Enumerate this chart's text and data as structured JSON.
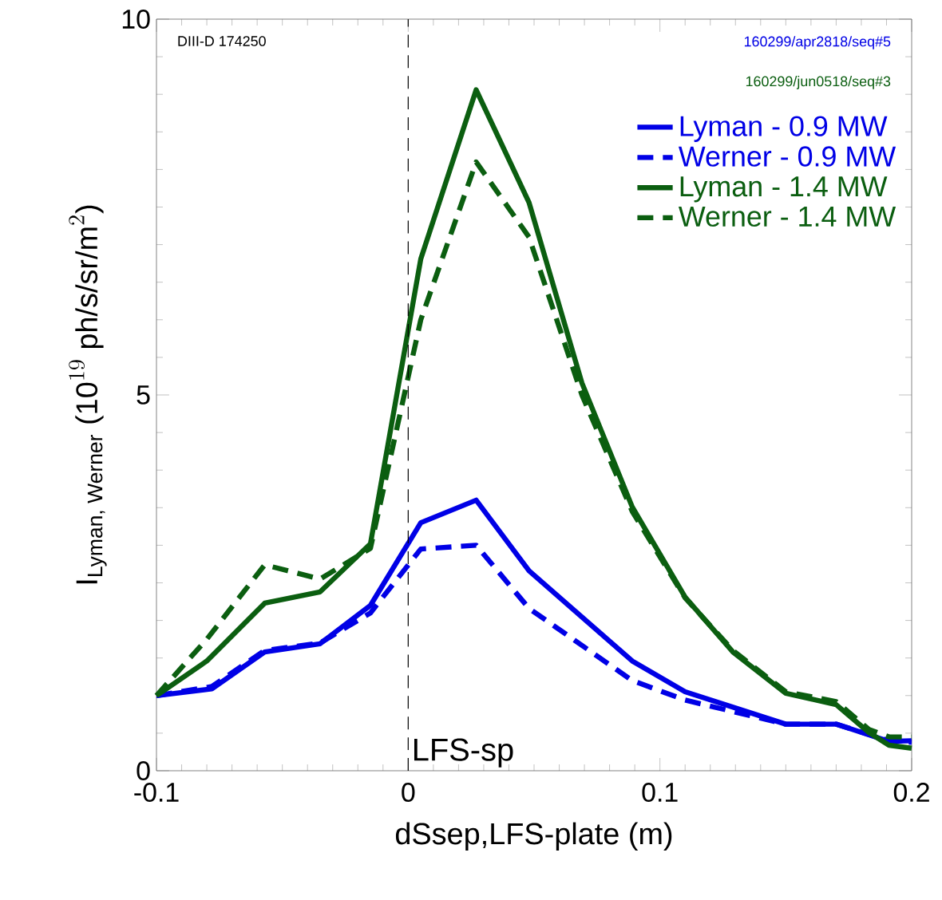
{
  "chart_data": {
    "type": "line",
    "xlabel": "dSsep,LFS-plate (m)",
    "ylabel": "\\text{I}_{\\text{Lyman, Werner}}\\ \\text{(10}^{19}\\text{ ph/s/sr/m}^{2}\\text{)}",
    "xlim": [
      -0.1,
      0.2
    ],
    "ylim": [
      0,
      10
    ],
    "xticks": [
      -0.1,
      0,
      0.1,
      0.2
    ],
    "yticks": [
      0,
      5,
      10
    ],
    "legend": "top right",
    "grid": false,
    "ref_lines": [
      {
        "axis": "x",
        "value": 0,
        "label": "LFS-sp",
        "line_style": "dashed",
        "color": "#000000"
      }
    ],
    "annotations": [
      "DIII-D 174250",
      "160299/apr2818/seq#5",
      "160299/jun0518/seq#3"
    ],
    "series": [
      {
        "name": "Lyman - 0.9 MW",
        "color": "#0000e6",
        "line_style": "solid",
        "x": [
          -0.1,
          -0.078,
          -0.057,
          -0.035,
          -0.015,
          0.005,
          0.027,
          0.048,
          0.089,
          0.11,
          0.15,
          0.17,
          0.191,
          0.2
        ],
        "values": [
          1.0,
          1.09,
          1.58,
          1.69,
          2.2,
          3.3,
          3.6,
          2.66,
          1.46,
          1.05,
          0.62,
          0.62,
          0.39,
          0.4
        ]
      },
      {
        "name": "Werner - 0.9 MW",
        "color": "#0000e6",
        "line_style": "dashed",
        "x": [
          -0.1,
          -0.078,
          -0.057,
          -0.035,
          -0.015,
          0.005,
          0.027,
          0.048,
          0.089,
          0.11,
          0.15,
          0.17,
          0.191,
          0.2
        ],
        "values": [
          1.0,
          1.12,
          1.6,
          1.7,
          2.1,
          2.95,
          3.0,
          2.16,
          1.2,
          0.94,
          0.62,
          0.62,
          0.4,
          0.38
        ]
      },
      {
        "name": "Lyman - 1.4 MW",
        "color": "#0b5e10",
        "line_style": "solid",
        "x": [
          -0.1,
          -0.08,
          -0.057,
          -0.035,
          -0.015,
          0.005,
          0.027,
          0.048,
          0.069,
          0.089,
          0.11,
          0.129,
          0.15,
          0.17,
          0.183,
          0.191,
          0.2
        ],
        "values": [
          1.0,
          1.46,
          2.23,
          2.38,
          3.02,
          6.81,
          9.06,
          7.56,
          5.16,
          3.51,
          2.31,
          1.58,
          1.03,
          0.88,
          0.51,
          0.34,
          0.3
        ]
      },
      {
        "name": "Werner - 1.4 MW",
        "color": "#0b5e10",
        "line_style": "dashed",
        "x": [
          -0.1,
          -0.08,
          -0.057,
          -0.035,
          -0.015,
          0.005,
          0.027,
          0.048,
          0.069,
          0.089,
          0.11,
          0.129,
          0.15,
          0.17,
          0.183,
          0.191,
          0.2
        ],
        "values": [
          1.0,
          1.75,
          2.74,
          2.55,
          2.96,
          6.0,
          8.1,
          7.1,
          5.0,
          3.45,
          2.3,
          1.6,
          1.05,
          0.92,
          0.55,
          0.45,
          0.45
        ]
      }
    ]
  }
}
